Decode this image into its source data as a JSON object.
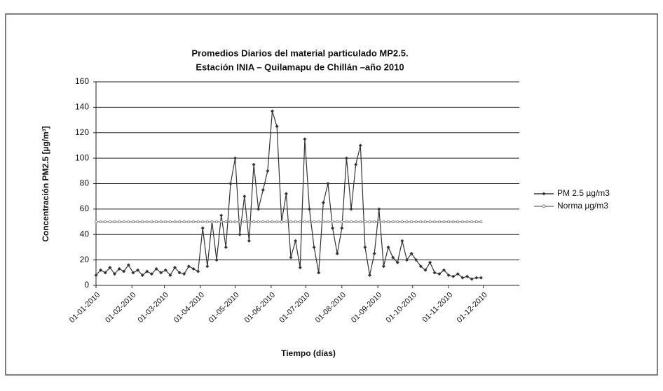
{
  "chart_data": {
    "type": "line",
    "title": [
      "Promedios  Diarios del material particulado MP2.5.",
      "Estación INIA – Quilamapu de Chillán –año 2010"
    ],
    "y_label": "Concentración PM2.5 [µg/m³]",
    "x_label": "Tiempo (días)",
    "x": [
      "2010-01-01",
      "2010-01-05",
      "2010-01-09",
      "2010-01-13",
      "2010-01-17",
      "2010-01-21",
      "2010-01-25",
      "2010-01-29",
      "2010-02-02",
      "2010-02-06",
      "2010-02-10",
      "2010-02-14",
      "2010-02-18",
      "2010-02-22",
      "2010-02-26",
      "2010-03-02",
      "2010-03-06",
      "2010-03-10",
      "2010-03-14",
      "2010-03-18",
      "2010-03-22",
      "2010-03-26",
      "2010-03-30",
      "2010-04-03",
      "2010-04-07",
      "2010-04-11",
      "2010-04-15",
      "2010-04-19",
      "2010-04-23",
      "2010-04-27",
      "2010-05-01",
      "2010-05-05",
      "2010-05-09",
      "2010-05-13",
      "2010-05-17",
      "2010-05-21",
      "2010-05-25",
      "2010-05-29",
      "2010-06-02",
      "2010-06-06",
      "2010-06-10",
      "2010-06-14",
      "2010-06-18",
      "2010-06-22",
      "2010-06-26",
      "2010-06-30",
      "2010-07-04",
      "2010-07-08",
      "2010-07-12",
      "2010-07-16",
      "2010-07-20",
      "2010-07-24",
      "2010-07-28",
      "2010-08-01",
      "2010-08-05",
      "2010-08-09",
      "2010-08-13",
      "2010-08-17",
      "2010-08-21",
      "2010-08-25",
      "2010-08-29",
      "2010-09-02",
      "2010-09-06",
      "2010-09-10",
      "2010-09-14",
      "2010-09-18",
      "2010-09-22",
      "2010-09-26",
      "2010-09-30",
      "2010-10-04",
      "2010-10-08",
      "2010-10-12",
      "2010-10-16",
      "2010-10-20",
      "2010-10-24",
      "2010-10-28",
      "2010-11-01",
      "2010-11-05",
      "2010-11-09",
      "2010-11-13",
      "2010-11-17",
      "2010-11-21",
      "2010-11-25",
      "2010-11-29"
    ],
    "series": [
      {
        "name": "PM 2.5 µg/m3",
        "color": "#333333",
        "marker": "diamond",
        "values": [
          8,
          12,
          10,
          14,
          9,
          13,
          11,
          16,
          10,
          12,
          8,
          11,
          9,
          13,
          10,
          12,
          8,
          14,
          10,
          9,
          15,
          13,
          11,
          45,
          15,
          50,
          20,
          55,
          30,
          80,
          100,
          40,
          70,
          35,
          95,
          60,
          75,
          90,
          137,
          125,
          50,
          72,
          22,
          35,
          14,
          115,
          60,
          30,
          10,
          65,
          80,
          45,
          25,
          45,
          100,
          60,
          95,
          110,
          30,
          8,
          25,
          60,
          15,
          30,
          22,
          18,
          35,
          20,
          25,
          20,
          15,
          12,
          18,
          10,
          9,
          12,
          8,
          7,
          9,
          6,
          7,
          5,
          6,
          6
        ]
      },
      {
        "name": "Norma µg/m3",
        "color": "#808080",
        "marker": "circle",
        "values": [
          50,
          50,
          50,
          50,
          50,
          50,
          50,
          50,
          50,
          50,
          50,
          50,
          50,
          50,
          50,
          50,
          50,
          50,
          50,
          50,
          50,
          50,
          50,
          50,
          50,
          50,
          50,
          50,
          50,
          50,
          50,
          50,
          50,
          50,
          50,
          50,
          50,
          50,
          50,
          50,
          50,
          50,
          50,
          50,
          50,
          50,
          50,
          50,
          50,
          50,
          50,
          50,
          50,
          50,
          50,
          50,
          50,
          50,
          50,
          50,
          50,
          50,
          50,
          50,
          50,
          50,
          50,
          50,
          50,
          50,
          50,
          50,
          50,
          50,
          50,
          50,
          50,
          50,
          50,
          50,
          50,
          50,
          50,
          50
        ]
      }
    ],
    "xlim": [
      "2010-01-01",
      "2011-01-01"
    ],
    "xticks": [
      {
        "value": "2010-01-01",
        "label": "01-01-2010"
      },
      {
        "value": "2010-02-01",
        "label": "01-02-2010"
      },
      {
        "value": "2010-03-01",
        "label": "01-03-2010"
      },
      {
        "value": "2010-04-01",
        "label": "01-04-2010"
      },
      {
        "value": "2010-05-01",
        "label": "01-05-2010"
      },
      {
        "value": "2010-06-01",
        "label": "01-06-2010"
      },
      {
        "value": "2010-07-01",
        "label": "01-07-2010"
      },
      {
        "value": "2010-08-01",
        "label": "01-08-2010"
      },
      {
        "value": "2010-09-01",
        "label": "01-09-2010"
      },
      {
        "value": "2010-10-01",
        "label": "01-10-2010"
      },
      {
        "value": "2010-11-01",
        "label": "01-11-2010"
      },
      {
        "value": "2010-12-01",
        "label": "01-12-2010"
      }
    ],
    "ylim": [
      0,
      160
    ],
    "yticks": [
      0,
      20,
      40,
      60,
      80,
      100,
      120,
      140,
      160
    ],
    "grid": true,
    "legend": "right"
  }
}
